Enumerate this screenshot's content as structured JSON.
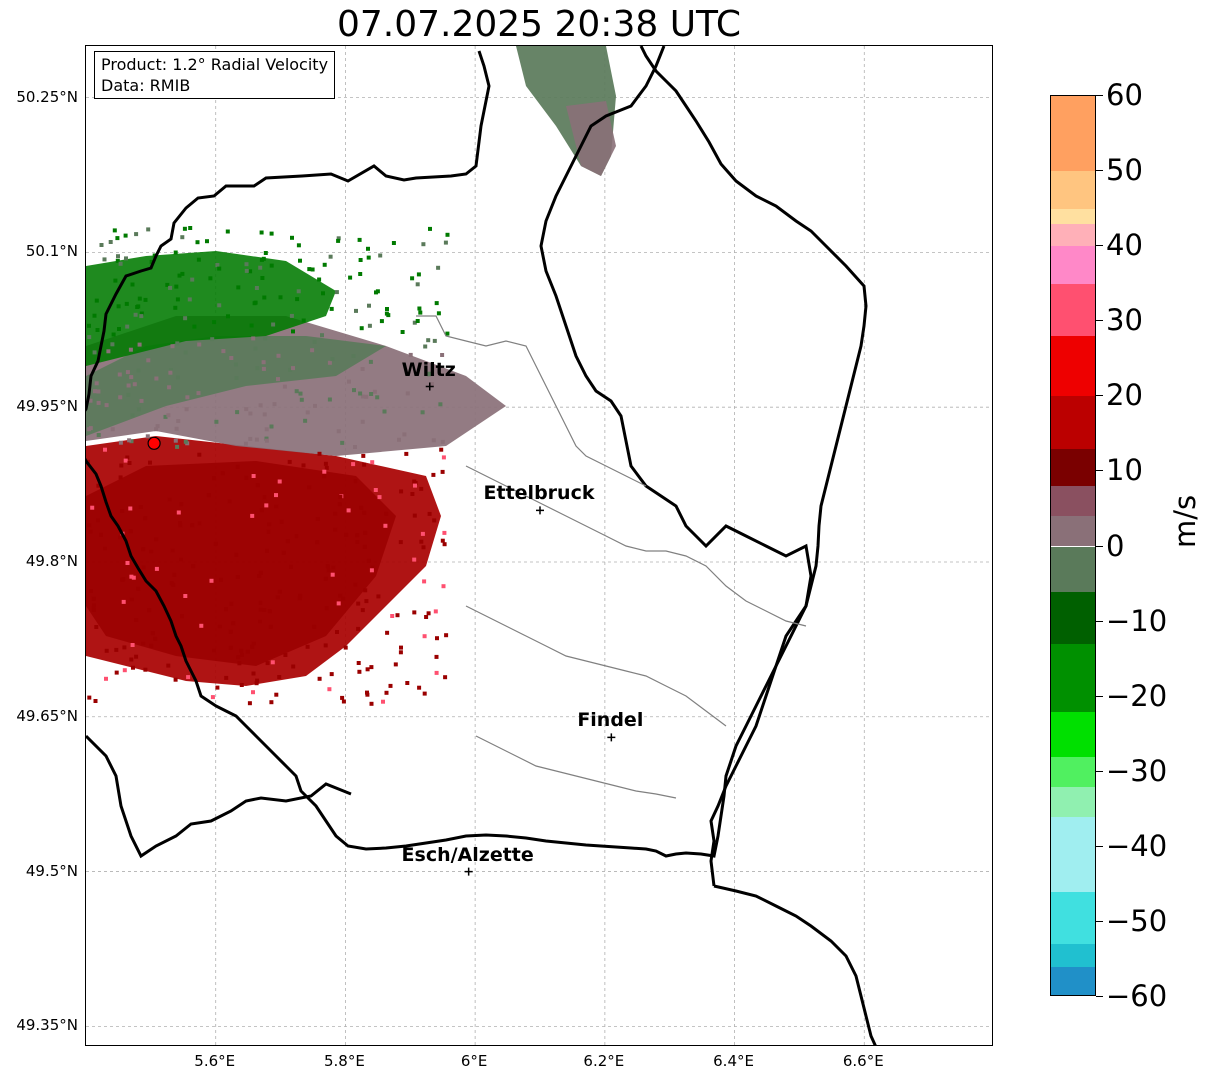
{
  "title": "07.07.2025 20:38 UTC",
  "info_box": {
    "product": "Product: 1.2° Radial Velocity",
    "data": "Data: RMIB"
  },
  "axes": {
    "lon_range": [
      5.4,
      6.8
    ],
    "lat_range": [
      49.33,
      50.3
    ],
    "y_ticks": [
      {
        "value": 50.25,
        "label": "50.25°N"
      },
      {
        "value": 50.1,
        "label": "50.1°N"
      },
      {
        "value": 49.95,
        "label": "49.95°N"
      },
      {
        "value": 49.8,
        "label": "49.8°N"
      },
      {
        "value": 49.65,
        "label": "49.65°N"
      },
      {
        "value": 49.5,
        "label": "49.5°N"
      },
      {
        "value": 49.35,
        "label": "49.35°N"
      }
    ],
    "x_ticks": [
      {
        "value": 5.6,
        "label": "5.6°E"
      },
      {
        "value": 5.8,
        "label": "5.8°E"
      },
      {
        "value": 6.0,
        "label": "6°E"
      },
      {
        "value": 6.2,
        "label": "6.2°E"
      },
      {
        "value": 6.4,
        "label": "6.4°E"
      },
      {
        "value": 6.6,
        "label": "6.6°E"
      }
    ],
    "grid": true
  },
  "cities": [
    {
      "name": "Wiltz",
      "lon": 5.93,
      "lat": 49.97
    },
    {
      "name": "Ettelbruck",
      "lon": 6.1,
      "lat": 49.85
    },
    {
      "name": "Findel",
      "lon": 6.21,
      "lat": 49.63
    },
    {
      "name": "Esch/Alzette",
      "lon": 5.99,
      "lat": 49.5
    }
  ],
  "radar_site": {
    "lon": 5.505,
    "lat": 49.915,
    "color": "#ff0000"
  },
  "colorbar": {
    "unit": "m/s",
    "range": [
      -60,
      60
    ],
    "ticks": [
      {
        "value": 60,
        "label": "60"
      },
      {
        "value": 50,
        "label": "50"
      },
      {
        "value": 40,
        "label": "40"
      },
      {
        "value": 30,
        "label": "30"
      },
      {
        "value": 20,
        "label": "20"
      },
      {
        "value": 10,
        "label": "10"
      },
      {
        "value": 0,
        "label": "0"
      },
      {
        "value": -10,
        "label": "−10"
      },
      {
        "value": -20,
        "label": "−20"
      },
      {
        "value": -30,
        "label": "−30"
      },
      {
        "value": -40,
        "label": "−40"
      },
      {
        "value": -50,
        "label": "−50"
      },
      {
        "value": -60,
        "label": "−60"
      }
    ],
    "stops": [
      {
        "from": 50,
        "to": 60,
        "color": "#ffa060"
      },
      {
        "from": 45,
        "to": 50,
        "color": "#ffc580"
      },
      {
        "from": 43,
        "to": 45,
        "color": "#ffe0a0"
      },
      {
        "from": 40,
        "to": 43,
        "color": "#ffb0b8"
      },
      {
        "from": 35,
        "to": 40,
        "color": "#ff88c8"
      },
      {
        "from": 28,
        "to": 35,
        "color": "#ff5070"
      },
      {
        "from": 20,
        "to": 28,
        "color": "#ee0000"
      },
      {
        "from": 13,
        "to": 20,
        "color": "#bb0000"
      },
      {
        "from": 8,
        "to": 13,
        "color": "#7a0000"
      },
      {
        "from": 4,
        "to": 8,
        "color": "#8a5060"
      },
      {
        "from": 0,
        "to": 4,
        "color": "#8a7078"
      },
      {
        "from": -6,
        "to": 0,
        "color": "#5a7a5a"
      },
      {
        "from": -13,
        "to": -6,
        "color": "#006000"
      },
      {
        "from": -22,
        "to": -13,
        "color": "#009000"
      },
      {
        "from": -28,
        "to": -22,
        "color": "#00e000"
      },
      {
        "from": -32,
        "to": -28,
        "color": "#50f060"
      },
      {
        "from": -36,
        "to": -32,
        "color": "#90f0b0"
      },
      {
        "from": -46,
        "to": -36,
        "color": "#a0eef0"
      },
      {
        "from": -53,
        "to": -46,
        "color": "#40e0e0"
      },
      {
        "from": -56,
        "to": -53,
        "color": "#20c0d0"
      },
      {
        "from": -60,
        "to": -56,
        "color": "#2090c8"
      }
    ]
  }
}
